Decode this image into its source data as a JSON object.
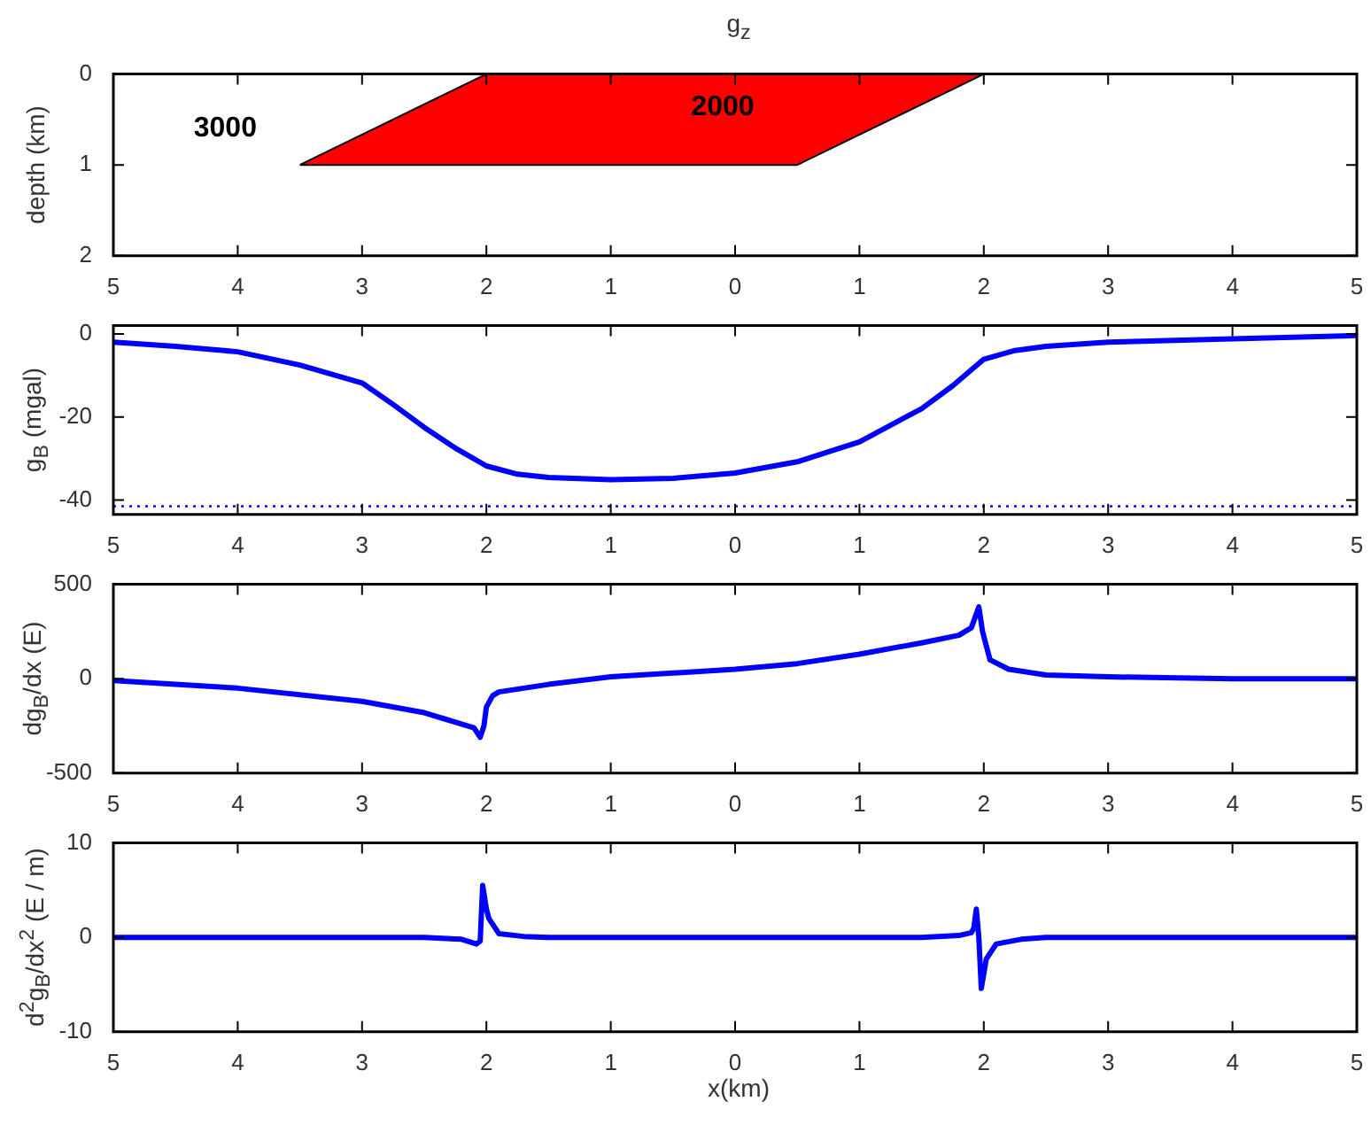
{
  "chart_data": [
    {
      "type": "area",
      "title": "g$_{z}$",
      "ylabel": "depth (km)",
      "x": [
        -3.5,
        -2,
        2,
        0.5,
        -3.5
      ],
      "values": [
        1,
        0,
        0,
        1,
        1
      ],
      "color": "#ff0000",
      "annotations": [
        "3000",
        "2000"
      ],
      "xlim": [
        -5,
        5
      ],
      "xticks": [
        {
          "value": -5,
          "label": "5"
        },
        {
          "value": -4,
          "label": "4"
        },
        {
          "value": -3,
          "label": "3"
        },
        {
          "value": -2,
          "label": "2"
        },
        {
          "value": -1,
          "label": "1"
        },
        0,
        1,
        2,
        3,
        4,
        5
      ],
      "ylim": [
        2,
        0
      ],
      "yticks": [
        0,
        1,
        2
      ]
    },
    {
      "type": "line",
      "ylabel": "g$_{B}$ (mgal)",
      "x": [
        -5,
        -4.5,
        -4,
        -3.5,
        -3,
        -2.75,
        -2.5,
        -2.25,
        -2,
        -1.75,
        -1.5,
        -1,
        -0.5,
        0,
        0.5,
        1,
        1.5,
        1.75,
        2,
        2.25,
        2.5,
        3,
        4,
        5
      ],
      "values": [
        -2,
        -3,
        -4.3,
        -7.5,
        -11.8,
        -17,
        -22.5,
        -27.5,
        -31.8,
        -33.8,
        -34.6,
        -35.1,
        -34.8,
        -33.5,
        -30.8,
        -26,
        -18,
        -12.5,
        -6.1,
        -4,
        -3,
        -2,
        -1.2,
        -0.4
      ],
      "color": "#0000ff",
      "ref_lines": [
        {
          "axis": "y",
          "value": -41.5,
          "color": "#0000ff",
          "line_style": "dotted"
        }
      ],
      "xlim": [
        -5,
        5
      ],
      "xticks": [
        {
          "value": -5,
          "label": "5"
        },
        {
          "value": -4,
          "label": "4"
        },
        {
          "value": -3,
          "label": "3"
        },
        {
          "value": -2,
          "label": "2"
        },
        {
          "value": -1,
          "label": "1"
        },
        0,
        1,
        2,
        3,
        4,
        5
      ],
      "ylim": [
        -43.5,
        2
      ],
      "yticks": [
        -40,
        -20,
        0
      ]
    },
    {
      "type": "line",
      "ylabel": "dg$_{B}$/dx (E)",
      "x": [
        -5,
        -4,
        -3,
        -2.5,
        -2.2,
        -2.1,
        -2.05,
        -2.02,
        -2,
        -1.95,
        -1.9,
        -1.5,
        -1,
        0,
        0.5,
        1,
        1.5,
        1.8,
        1.9,
        1.96,
        1.99,
        2.05,
        2.2,
        2.5,
        3,
        4,
        5
      ],
      "values": [
        -10,
        -50,
        -120,
        -180,
        -240,
        -260,
        -310,
        -250,
        -150,
        -90,
        -70,
        -30,
        10,
        50,
        80,
        130,
        190,
        230,
        270,
        380,
        250,
        100,
        50,
        20,
        10,
        0,
        0
      ],
      "color": "#0000ff",
      "xlim": [
        -5,
        5
      ],
      "xticks": [
        {
          "value": -5,
          "label": "5"
        },
        {
          "value": -4,
          "label": "4"
        },
        {
          "value": -3,
          "label": "3"
        },
        {
          "value": -2,
          "label": "2"
        },
        {
          "value": -1,
          "label": "1"
        },
        0,
        1,
        2,
        3,
        4,
        5
      ],
      "ylim": [
        -500,
        500
      ],
      "yticks": [
        -500,
        0,
        500
      ]
    },
    {
      "type": "line",
      "ylabel": "d$^{2}$g$_{B}$/dx$^{2}$ (E / m)",
      "xlabel": "x(km)",
      "x": [
        -5,
        -2.5,
        -2.2,
        -2.08,
        -2.05,
        -2.03,
        -2,
        -1.98,
        -1.9,
        -1.7,
        -1.5,
        1.5,
        1.8,
        1.9,
        1.92,
        1.94,
        1.96,
        1.98,
        2.02,
        2.1,
        2.3,
        2.5,
        5
      ],
      "values": [
        0,
        0,
        -0.2,
        -0.7,
        -0.4,
        5.5,
        3,
        2,
        0.4,
        0.1,
        0,
        0,
        0.2,
        0.5,
        1,
        3,
        0,
        -5.4,
        -2.3,
        -0.7,
        -0.2,
        0,
        0
      ],
      "color": "#0000ff",
      "xlim": [
        -5,
        5
      ],
      "xticks": [
        {
          "value": -5,
          "label": "5"
        },
        {
          "value": -4,
          "label": "4"
        },
        {
          "value": -3,
          "label": "3"
        },
        {
          "value": -2,
          "label": "2"
        },
        {
          "value": -1,
          "label": "1"
        },
        0,
        1,
        2,
        3,
        4,
        5
      ],
      "ylim": [
        -10,
        10
      ],
      "yticks": [
        -10,
        0,
        10
      ]
    }
  ]
}
